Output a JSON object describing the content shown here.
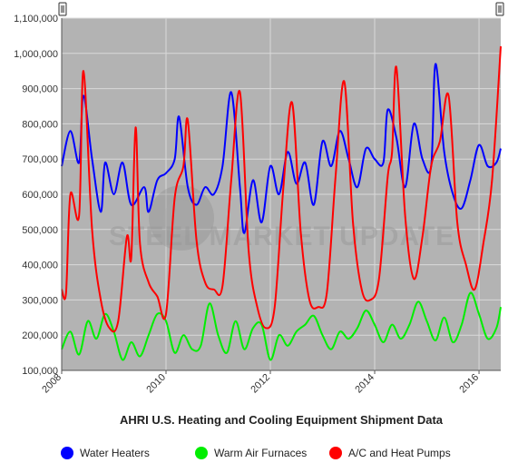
{
  "chart_data": {
    "type": "line",
    "title": "AHRI U.S. Heating and Cooling Equipment Shipment Data",
    "xlabel": "",
    "ylabel": "",
    "x_ticks": [
      "2008",
      "2010",
      "2012",
      "2014",
      "2016"
    ],
    "y_ticks": [
      "100,000",
      "200,000",
      "300,000",
      "400,000",
      "500,000",
      "600,000",
      "700,000",
      "800,000",
      "900,000",
      "1,000,000",
      "1,100,000"
    ],
    "ylim": [
      100000,
      1100000
    ],
    "xlim": [
      "2008-01",
      "2016-06"
    ],
    "grid": true,
    "legend_position": "bottom",
    "background_color": "#b3b3b3",
    "watermark": "STEEL MARKET UPDATE",
    "series": [
      {
        "name": "Water Heaters",
        "color": "#0000ff",
        "x": [
          "2008-01",
          "2008-03",
          "2008-05",
          "2008-06",
          "2008-08",
          "2008-10",
          "2008-11",
          "2009-01",
          "2009-03",
          "2009-05",
          "2009-08",
          "2009-09",
          "2009-11",
          "2010-01",
          "2010-03",
          "2010-04",
          "2010-06",
          "2010-08",
          "2010-10",
          "2010-12",
          "2011-02",
          "2011-04",
          "2011-06",
          "2011-07",
          "2011-09",
          "2011-11",
          "2012-01",
          "2012-03",
          "2012-05",
          "2012-07",
          "2012-09",
          "2012-11",
          "2013-01",
          "2013-03",
          "2013-05",
          "2013-07",
          "2013-09",
          "2013-11",
          "2014-01",
          "2014-03",
          "2014-04",
          "2014-06",
          "2014-08",
          "2014-10",
          "2014-12",
          "2015-02",
          "2015-03",
          "2015-05",
          "2015-07",
          "2015-09",
          "2015-11",
          "2016-01",
          "2016-03",
          "2016-05",
          "2016-06"
        ],
        "values": [
          680000,
          780000,
          690000,
          880000,
          700000,
          550000,
          690000,
          600000,
          690000,
          570000,
          620000,
          550000,
          640000,
          660000,
          700000,
          820000,
          620000,
          570000,
          620000,
          600000,
          680000,
          890000,
          620000,
          490000,
          640000,
          520000,
          680000,
          600000,
          720000,
          630000,
          690000,
          570000,
          750000,
          680000,
          780000,
          700000,
          620000,
          730000,
          700000,
          690000,
          840000,
          760000,
          620000,
          800000,
          700000,
          680000,
          970000,
          720000,
          600000,
          560000,
          640000,
          740000,
          680000,
          690000,
          730000
        ]
      },
      {
        "name": "Warm Air Furnaces",
        "color": "#00ee00",
        "x": [
          "2008-01",
          "2008-03",
          "2008-05",
          "2008-07",
          "2008-09",
          "2008-11",
          "2009-01",
          "2009-03",
          "2009-05",
          "2009-07",
          "2009-09",
          "2009-11",
          "2010-01",
          "2010-03",
          "2010-05",
          "2010-07",
          "2010-09",
          "2010-11",
          "2011-01",
          "2011-03",
          "2011-05",
          "2011-07",
          "2011-09",
          "2011-11",
          "2012-01",
          "2012-03",
          "2012-05",
          "2012-07",
          "2012-09",
          "2012-11",
          "2013-01",
          "2013-03",
          "2013-05",
          "2013-07",
          "2013-09",
          "2013-11",
          "2014-01",
          "2014-03",
          "2014-05",
          "2014-07",
          "2014-09",
          "2014-11",
          "2015-01",
          "2015-03",
          "2015-05",
          "2015-07",
          "2015-09",
          "2015-11",
          "2016-01",
          "2016-03",
          "2016-05",
          "2016-06"
        ],
        "values": [
          160000,
          210000,
          145000,
          240000,
          190000,
          260000,
          210000,
          130000,
          180000,
          140000,
          200000,
          260000,
          240000,
          150000,
          200000,
          160000,
          170000,
          290000,
          200000,
          150000,
          240000,
          160000,
          220000,
          230000,
          130000,
          200000,
          170000,
          210000,
          230000,
          255000,
          200000,
          160000,
          210000,
          190000,
          220000,
          270000,
          230000,
          180000,
          230000,
          190000,
          230000,
          295000,
          240000,
          185000,
          250000,
          180000,
          230000,
          320000,
          260000,
          190000,
          220000,
          280000
        ]
      },
      {
        "name": "A/C and Heat Pumps",
        "color": "#ff0000",
        "x": [
          "2008-01",
          "2008-02",
          "2008-03",
          "2008-05",
          "2008-06",
          "2008-08",
          "2008-10",
          "2008-12",
          "2009-02",
          "2009-04",
          "2009-05",
          "2009-06",
          "2009-07",
          "2009-09",
          "2009-11",
          "2010-01",
          "2010-03",
          "2010-05",
          "2010-06",
          "2010-08",
          "2010-10",
          "2010-12",
          "2011-02",
          "2011-04",
          "2011-06",
          "2011-08",
          "2011-10",
          "2011-12",
          "2012-02",
          "2012-04",
          "2012-06",
          "2012-08",
          "2012-10",
          "2012-12",
          "2013-02",
          "2013-04",
          "2013-06",
          "2013-08",
          "2013-10",
          "2013-12",
          "2014-02",
          "2014-04",
          "2014-05",
          "2014-06",
          "2014-08",
          "2014-10",
          "2014-12",
          "2015-02",
          "2015-04",
          "2015-06",
          "2015-08",
          "2015-10",
          "2015-12",
          "2016-02",
          "2016-04",
          "2016-06"
        ],
        "values": [
          330000,
          320000,
          600000,
          540000,
          950000,
          500000,
          300000,
          220000,
          240000,
          480000,
          420000,
          790000,
          460000,
          350000,
          310000,
          260000,
          590000,
          680000,
          810000,
          470000,
          350000,
          330000,
          340000,
          640000,
          890000,
          440000,
          280000,
          220000,
          280000,
          620000,
          860000,
          490000,
          300000,
          280000,
          320000,
          650000,
          920000,
          520000,
          330000,
          300000,
          360000,
          650000,
          720000,
          960000,
          540000,
          360000,
          480000,
          680000,
          750000,
          880000,
          520000,
          400000,
          330000,
          460000,
          640000,
          1020000
        ]
      }
    ]
  },
  "legend": {
    "items": [
      {
        "label": "Water Heaters",
        "color": "#0000ff"
      },
      {
        "label": "Warm Air Furnaces",
        "color": "#00ee00"
      },
      {
        "label": "A/C and Heat Pumps",
        "color": "#ff0000"
      }
    ]
  },
  "controls": {
    "icon_left": "range-slider-handle-icon",
    "icon_right": "range-slider-handle-icon"
  }
}
